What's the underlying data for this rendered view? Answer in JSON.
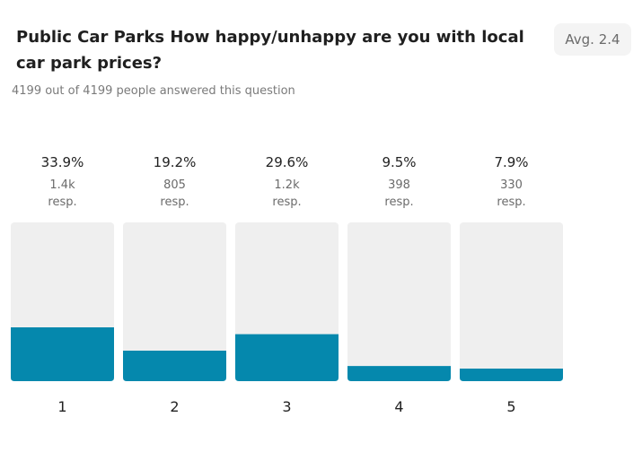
{
  "question": {
    "title": "Public Car Parks How happy/unhappy are you with local car park prices?",
    "answered": "4199 out of 4199 people answered this question",
    "average": "Avg. 2.4"
  },
  "colors": {
    "fill": "#0588ad",
    "track": "#efefef"
  },
  "chart_data": {
    "type": "bar",
    "categories": [
      "1",
      "2",
      "3",
      "4",
      "5"
    ],
    "values": [
      33.9,
      19.2,
      29.6,
      9.5,
      7.9
    ],
    "value_labels": [
      "33.9%",
      "19.2%",
      "29.6%",
      "9.5%",
      "7.9%"
    ],
    "response_counts": [
      "1.4k",
      "805",
      "1.2k",
      "398",
      "330"
    ],
    "response_unit": "resp.",
    "ylim": [
      0,
      100
    ],
    "grid": false,
    "legend": "none"
  }
}
